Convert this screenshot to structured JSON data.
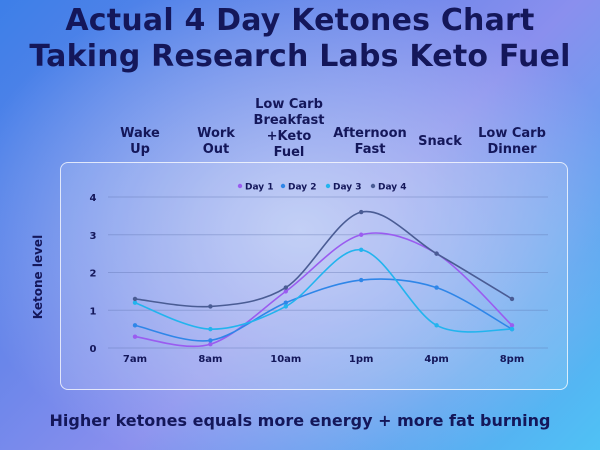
{
  "title": {
    "line1": "Actual 4 Day Ketones Chart",
    "line2": "Taking Research Labs Keto Fuel"
  },
  "events": [
    "Wake\nUp",
    "Work\nOut",
    "Low Carb\nBreakfast\n+Keto\nFuel",
    "Afternoon\nFast",
    "Snack",
    "Low Carb\nDinner"
  ],
  "footer": "Higher ketones equals more energy + more fat burning",
  "chart_data": {
    "type": "line",
    "title": "",
    "xlabel": "",
    "ylabel": "Ketone level",
    "categories": [
      "7am",
      "8am",
      "10am",
      "1pm",
      "4pm",
      "8pm"
    ],
    "ylim": [
      0,
      4
    ],
    "yticks": [
      0,
      1,
      2,
      3,
      4
    ],
    "grid": true,
    "legend": "top-center",
    "series": [
      {
        "name": "Day 1",
        "color": "#9a5cf0",
        "values": [
          0.3,
          0.1,
          1.5,
          3.0,
          2.5,
          0.6
        ]
      },
      {
        "name": "Day 2",
        "color": "#2f86e8",
        "values": [
          0.6,
          0.2,
          1.2,
          1.8,
          1.6,
          0.5
        ]
      },
      {
        "name": "Day 3",
        "color": "#22b4ee",
        "values": [
          1.2,
          0.5,
          1.1,
          2.6,
          0.6,
          0.5
        ]
      },
      {
        "name": "Day 4",
        "color": "#4a5c94",
        "values": [
          1.3,
          1.1,
          1.6,
          3.6,
          2.5,
          1.3
        ]
      }
    ]
  }
}
